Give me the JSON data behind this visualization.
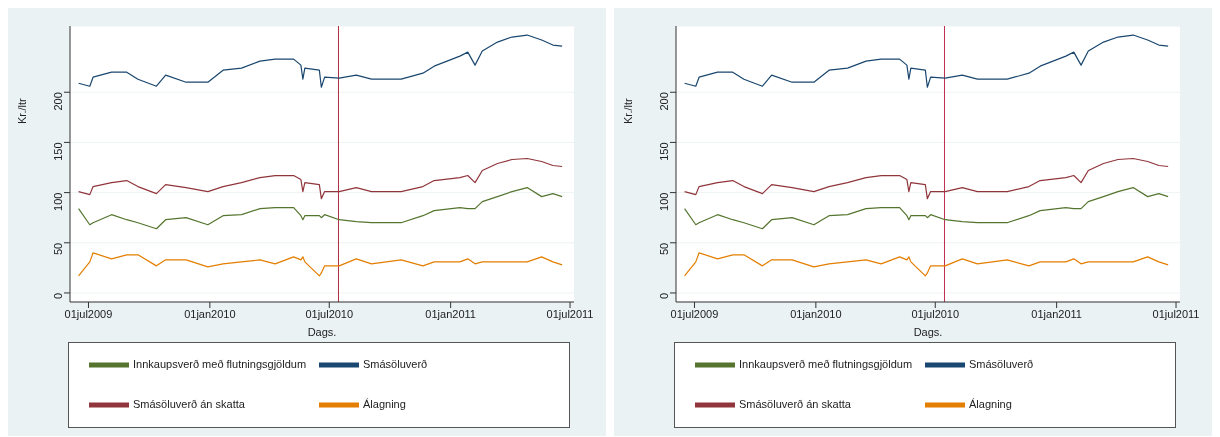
{
  "chart_data": [
    {
      "type": "line",
      "xlabel": "Dags.",
      "ylabel": "Kr./ltr",
      "grid": "y",
      "legend": "bottom",
      "marker": "none",
      "x": [
        "2009-06-16",
        "2009-07-03",
        "2009-07-08",
        "2009-08-05",
        "2009-08-28",
        "2009-09-14",
        "2009-10-12",
        "2009-10-26",
        "2009-11-26",
        "2009-12-29",
        "2010-01-21",
        "2010-02-18",
        "2010-03-18",
        "2010-04-10",
        "2010-05-08",
        "2010-05-19",
        "2010-05-22",
        "2010-05-25",
        "2010-06-16",
        "2010-06-19",
        "2010-06-24",
        "2010-07-16",
        "2010-08-11",
        "2010-09-03",
        "2010-10-18",
        "2010-11-20",
        "2010-12-07",
        "2011-01-15",
        "2011-01-27",
        "2011-02-07",
        "2011-02-18",
        "2011-03-13",
        "2011-04-04",
        "2011-04-27",
        "2011-05-19",
        "2011-06-05",
        "2011-06-19"
      ],
      "xlim": [
        "2009-06-03",
        "2011-07-07"
      ],
      "xticks": [
        {
          "value": "2009-07-01",
          "label": "01jul2009"
        },
        {
          "value": "2010-01-01",
          "label": "01jan2010"
        },
        {
          "value": "2010-07-01",
          "label": "01jul2010"
        },
        {
          "value": "2011-01-01",
          "label": "01jan2011"
        },
        {
          "value": "2011-07-01",
          "label": "01jul2011"
        }
      ],
      "ylim": [
        -9,
        266
      ],
      "yticks": [
        0,
        50,
        100,
        150,
        200
      ],
      "ref_lines": [
        {
          "axis": "x",
          "value": "2010-07-15",
          "color": "#b03040"
        }
      ],
      "series": [
        {
          "name": "Smásöluverð",
          "color": "#1a476f",
          "values": [
            209,
            206,
            215,
            220,
            220,
            213,
            206,
            217,
            210,
            210,
            222,
            224,
            231,
            233,
            233,
            227,
            213,
            224,
            222,
            205,
            215,
            214,
            217,
            213,
            213,
            219,
            226,
            236,
            240,
            227,
            241,
            250,
            255,
            257,
            252,
            247,
            246
          ]
        },
        {
          "name": "Smásöluverð án skatta",
          "color": "#90353b",
          "values": [
            101,
            98,
            106,
            110,
            112,
            106,
            99,
            108,
            105,
            101,
            106,
            110,
            115,
            117,
            117,
            113,
            101,
            110,
            108,
            94,
            101,
            101,
            105,
            101,
            101,
            106,
            112,
            115,
            117,
            110,
            122,
            129,
            133,
            134,
            131,
            127,
            126
          ]
        },
        {
          "name": "Innkaupsverð með flutningsgjöldum",
          "color": "#55752f",
          "values": [
            84,
            68,
            70,
            78,
            73,
            70,
            64,
            73,
            75,
            68,
            77,
            78,
            84,
            85,
            85,
            77,
            73,
            77,
            77,
            75,
            78,
            73,
            71,
            70,
            70,
            77,
            82,
            85,
            84,
            84,
            91,
            96,
            101,
            105,
            96,
            99,
            96
          ]
        },
        {
          "name": "Álagning",
          "color": "#e37e00",
          "values": [
            17,
            31,
            40,
            34,
            38,
            38,
            27,
            33,
            33,
            26,
            29,
            31,
            33,
            29,
            36,
            33,
            36,
            31,
            17,
            20,
            27,
            27,
            34,
            29,
            33,
            27,
            31,
            31,
            34,
            29,
            31,
            31,
            31,
            31,
            36,
            31,
            28
          ]
        }
      ]
    },
    {
      "type": "line",
      "xlabel": "Dags.",
      "ylabel": "Kr./ltr",
      "grid": "y",
      "legend": "bottom",
      "marker": "none",
      "x": [
        "2009-06-16",
        "2009-07-03",
        "2009-07-08",
        "2009-08-05",
        "2009-08-28",
        "2009-09-14",
        "2009-10-12",
        "2009-10-26",
        "2009-11-26",
        "2009-12-29",
        "2010-01-21",
        "2010-02-18",
        "2010-03-18",
        "2010-04-10",
        "2010-05-08",
        "2010-05-19",
        "2010-05-22",
        "2010-05-25",
        "2010-06-16",
        "2010-06-19",
        "2010-06-24",
        "2010-07-16",
        "2010-08-11",
        "2010-09-03",
        "2010-10-18",
        "2010-11-20",
        "2010-12-07",
        "2011-01-15",
        "2011-01-27",
        "2011-02-07",
        "2011-02-18",
        "2011-03-13",
        "2011-04-04",
        "2011-04-27",
        "2011-05-19",
        "2011-06-05",
        "2011-06-19"
      ],
      "xlim": [
        "2009-06-03",
        "2011-07-07"
      ],
      "xticks": [
        {
          "value": "2009-07-01",
          "label": "01jul2009"
        },
        {
          "value": "2010-01-01",
          "label": "01jan2010"
        },
        {
          "value": "2010-07-01",
          "label": "01jul2010"
        },
        {
          "value": "2011-01-01",
          "label": "01jan2011"
        },
        {
          "value": "2011-07-01",
          "label": "01jul2011"
        }
      ],
      "ylim": [
        -9,
        266
      ],
      "yticks": [
        0,
        50,
        100,
        150,
        200
      ],
      "ref_lines": [
        {
          "axis": "x",
          "value": "2010-07-15",
          "color": "#c03050"
        }
      ],
      "series": [
        {
          "name": "Smásöluverð",
          "color": "#1a476f",
          "values": [
            209,
            206,
            215,
            220,
            220,
            213,
            206,
            217,
            210,
            210,
            222,
            224,
            231,
            233,
            233,
            227,
            213,
            224,
            222,
            205,
            215,
            214,
            217,
            213,
            213,
            219,
            226,
            236,
            240,
            227,
            241,
            250,
            255,
            257,
            252,
            247,
            246
          ]
        },
        {
          "name": "Smásöluverð án skatta",
          "color": "#90353b",
          "values": [
            101,
            98,
            106,
            110,
            112,
            106,
            99,
            108,
            105,
            101,
            106,
            110,
            115,
            117,
            117,
            113,
            101,
            110,
            108,
            94,
            101,
            101,
            105,
            101,
            101,
            106,
            112,
            115,
            117,
            110,
            122,
            129,
            133,
            134,
            131,
            127,
            126
          ]
        },
        {
          "name": "Innkaupsverð með flutningsgjöldum",
          "color": "#55752f",
          "values": [
            84,
            68,
            70,
            78,
            73,
            70,
            64,
            73,
            75,
            68,
            77,
            78,
            84,
            85,
            85,
            77,
            73,
            77,
            77,
            75,
            78,
            73,
            71,
            70,
            70,
            77,
            82,
            85,
            84,
            84,
            91,
            96,
            101,
            105,
            96,
            99,
            96
          ]
        },
        {
          "name": "Álagning",
          "color": "#e37e00",
          "values": [
            17,
            31,
            40,
            34,
            38,
            38,
            27,
            33,
            33,
            26,
            29,
            31,
            33,
            29,
            36,
            33,
            36,
            31,
            17,
            20,
            27,
            27,
            34,
            29,
            33,
            27,
            31,
            31,
            34,
            29,
            31,
            31,
            31,
            31,
            36,
            31,
            28
          ]
        }
      ]
    }
  ]
}
